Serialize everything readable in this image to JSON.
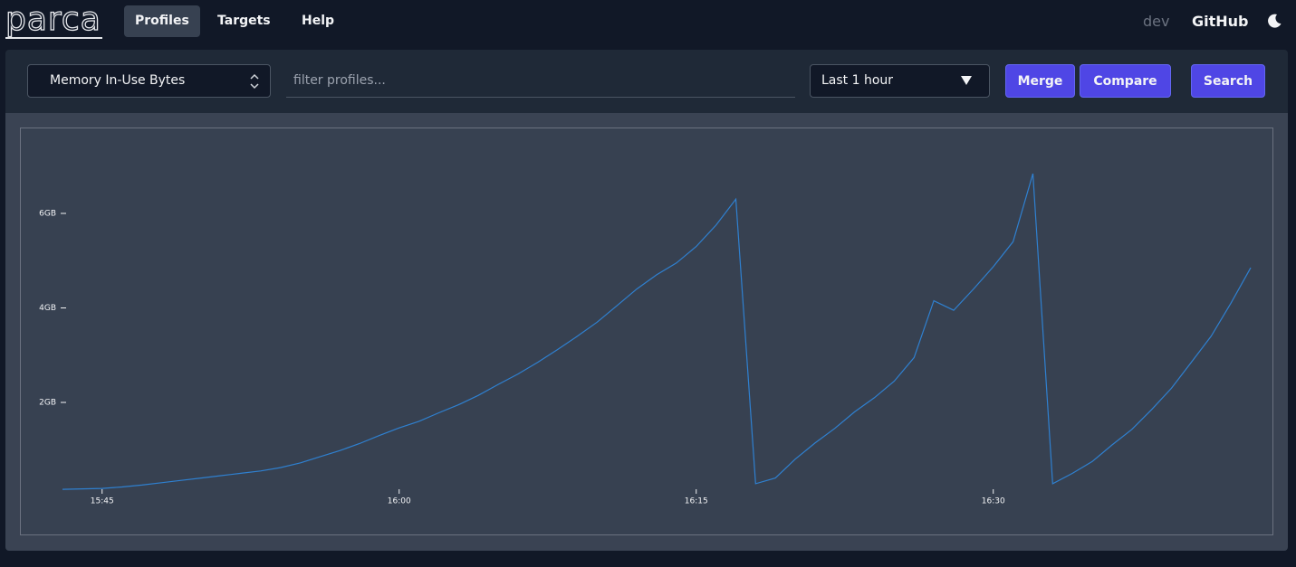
{
  "nav": {
    "logo": "parca",
    "links": [
      "Profiles",
      "Targets",
      "Help"
    ],
    "version": "dev",
    "github": "GitHub"
  },
  "toolbar": {
    "profile_type": "Memory In-Use Bytes",
    "filter_placeholder": "filter profiles...",
    "time_range": "Last 1 hour",
    "buttons": [
      "Merge",
      "Compare",
      "Search"
    ]
  },
  "chart_data": {
    "type": "line",
    "x": [
      "15:43",
      "15:44",
      "15:45",
      "15:46",
      "15:47",
      "15:48",
      "15:49",
      "15:50",
      "15:51",
      "15:52",
      "15:53",
      "15:54",
      "15:55",
      "15:56",
      "15:57",
      "15:58",
      "15:59",
      "16:00",
      "16:01",
      "16:02",
      "16:03",
      "16:04",
      "16:05",
      "16:06",
      "16:07",
      "16:08",
      "16:09",
      "16:10",
      "16:11",
      "16:12",
      "16:13",
      "16:14",
      "16:15",
      "16:16",
      "16:17",
      "16:18",
      "16:19",
      "16:20",
      "16:21",
      "16:22",
      "16:23",
      "16:24",
      "16:25",
      "16:26",
      "16:27",
      "16:28",
      "16:29",
      "16:30",
      "16:31",
      "16:32",
      "16:33",
      "16:34",
      "16:35",
      "16:36",
      "16:37",
      "16:38",
      "16:39",
      "16:40",
      "16:41",
      "16:42",
      "16:43"
    ],
    "values": [
      0.16,
      0.17,
      0.18,
      0.21,
      0.25,
      0.3,
      0.35,
      0.4,
      0.45,
      0.5,
      0.55,
      0.62,
      0.72,
      0.85,
      0.98,
      1.13,
      1.3,
      1.46,
      1.6,
      1.78,
      1.95,
      2.15,
      2.38,
      2.6,
      2.85,
      3.12,
      3.4,
      3.7,
      4.05,
      4.4,
      4.7,
      4.95,
      5.3,
      5.75,
      6.3,
      0.28,
      0.4,
      0.8,
      1.14,
      1.45,
      1.8,
      2.1,
      2.45,
      2.95,
      4.15,
      3.95,
      4.4,
      4.87,
      5.4,
      6.84,
      0.28,
      0.5,
      0.75,
      1.1,
      1.43,
      1.85,
      2.3,
      2.85,
      3.4,
      4.1,
      4.85
    ],
    "color": "#2f80d0",
    "ylim": [
      0,
      7.5
    ],
    "yticks": [
      {
        "value": 2,
        "label": "2GB"
      },
      {
        "value": 4,
        "label": "4GB"
      },
      {
        "value": 6,
        "label": "6GB"
      }
    ],
    "xticks": [
      "15:45",
      "16:00",
      "16:15",
      "16:30"
    ]
  }
}
